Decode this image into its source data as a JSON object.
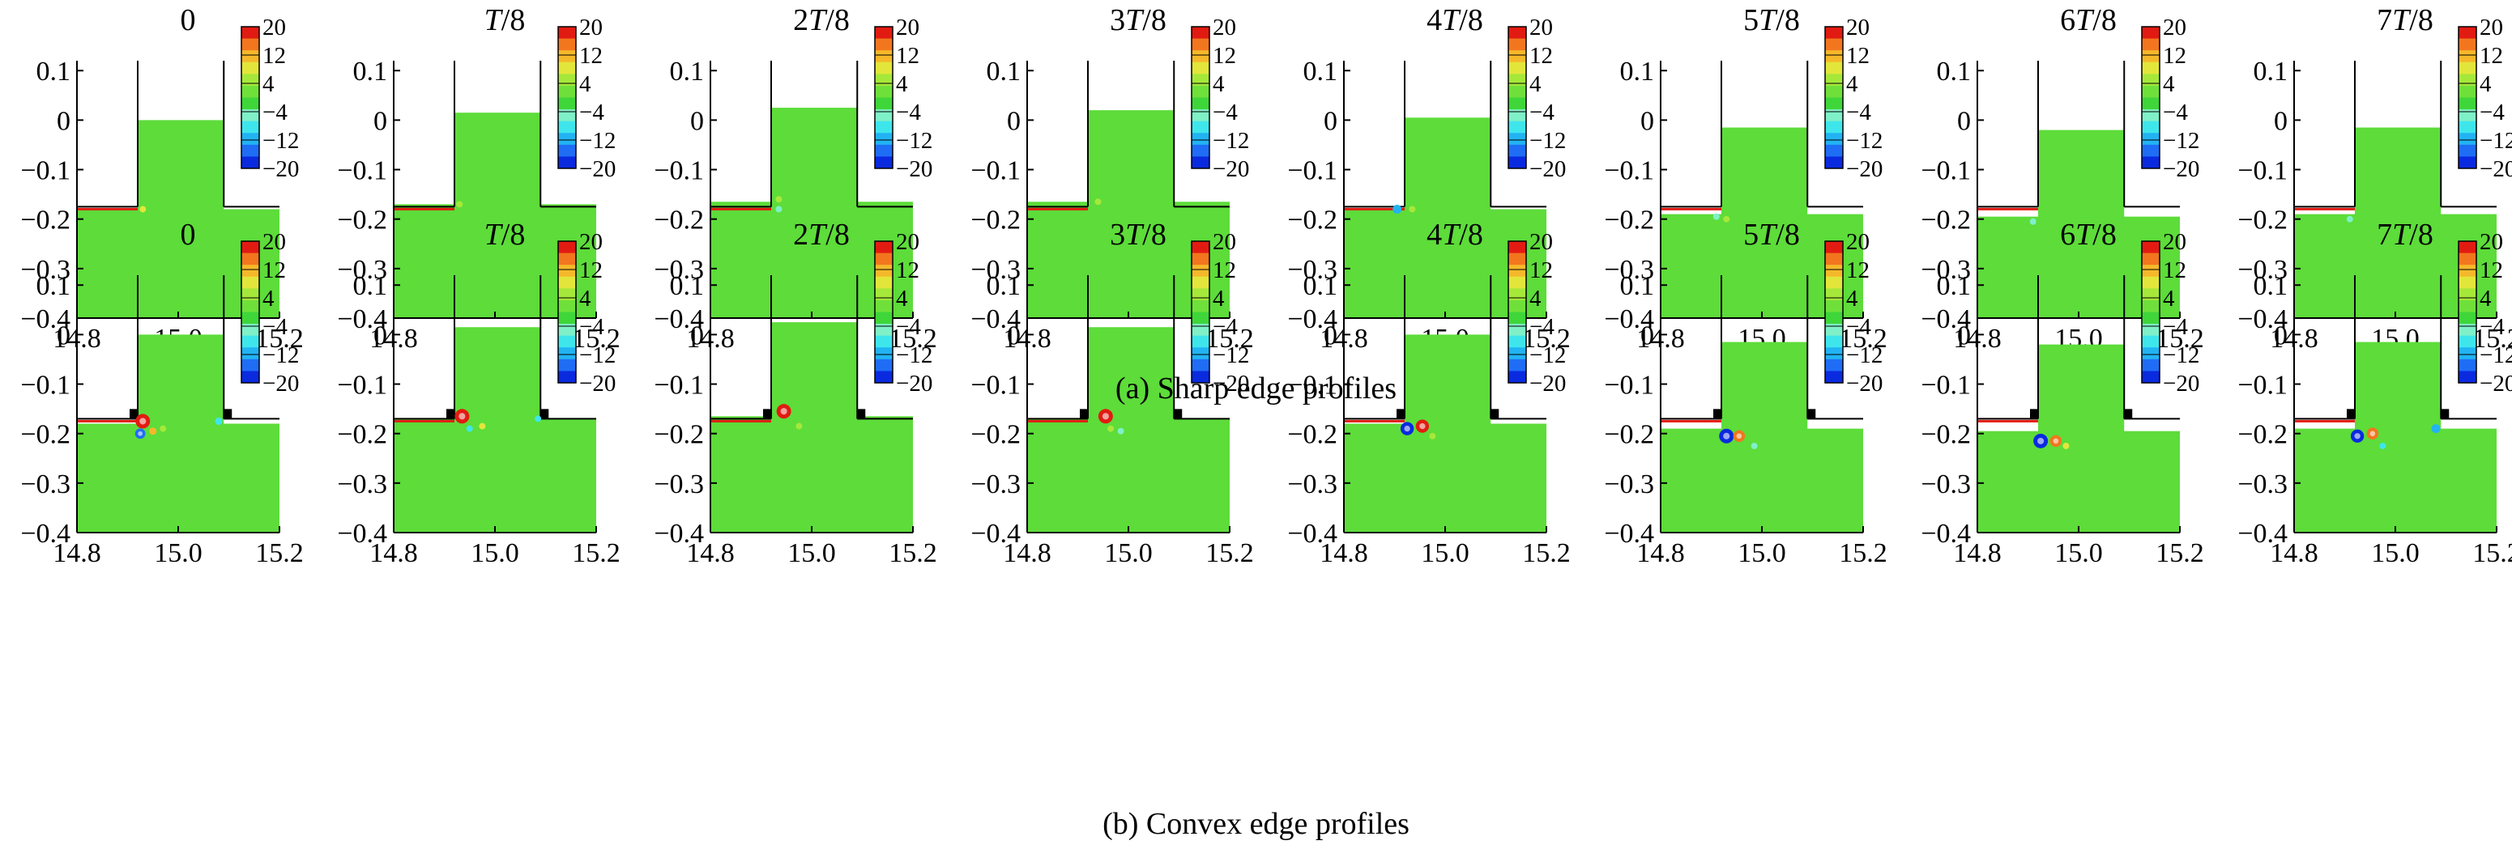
{
  "figure": {
    "captions": {
      "a": "(a) Sharp edge profiles",
      "b": "(b) Convex edge profiles"
    }
  },
  "chart_data": [
    {
      "type": "heatmap",
      "row": "a",
      "caption": "(a) Sharp edge profiles",
      "edge_profile": "sharp",
      "panel_titles": [
        "0",
        "T/8",
        "2T/8",
        "3T/8",
        "4T/8",
        "5T/8",
        "6T/8",
        "7T/8"
      ],
      "xlim": [
        14.8,
        15.2
      ],
      "ylim": [
        -0.4,
        0.12
      ],
      "xticks": [
        "14.8",
        "15.0",
        "15.2"
      ],
      "yticks": [
        "0.1",
        "0",
        "-0.1",
        "-0.2",
        "-0.3",
        "-0.4"
      ],
      "colorbar": {
        "ticks": [
          "20",
          "12",
          "4",
          "-4",
          "-12",
          "-20"
        ],
        "range": [
          -20,
          20
        ],
        "colors": [
          "#0a2adf",
          "#1f6df5",
          "#22b3f3",
          "#3ee6ec",
          "#7ff0c8",
          "#3fd63a",
          "#6fe03a",
          "#a6e83a",
          "#e2e63a",
          "#f5b82a",
          "#f2761e",
          "#e21b12"
        ]
      },
      "free_surface_inside": [
        0.0,
        0.015,
        0.025,
        0.02,
        0.005,
        -0.015,
        -0.02,
        -0.015
      ],
      "free_surface_outside": [
        -0.18,
        -0.17,
        -0.165,
        -0.165,
        -0.18,
        -0.19,
        -0.195,
        -0.19
      ],
      "vortices": [
        [
          {
            "x": 14.93,
            "y": -0.18,
            "v": 8
          }
        ],
        [
          {
            "x": 14.93,
            "y": -0.17,
            "v": 6
          }
        ],
        [
          {
            "x": 14.935,
            "y": -0.16,
            "v": 5
          },
          {
            "x": 14.935,
            "y": -0.18,
            "v": -6
          }
        ],
        [
          {
            "x": 14.94,
            "y": -0.165,
            "v": 5
          }
        ],
        [
          {
            "x": 14.905,
            "y": -0.18,
            "v": -12
          },
          {
            "x": 14.935,
            "y": -0.18,
            "v": 6
          }
        ],
        [
          {
            "x": 14.91,
            "y": -0.195,
            "v": -6
          },
          {
            "x": 14.93,
            "y": -0.2,
            "v": 4
          }
        ],
        [
          {
            "x": 14.91,
            "y": -0.205,
            "v": -5
          }
        ],
        [
          {
            "x": 14.91,
            "y": -0.2,
            "v": -4
          }
        ]
      ]
    },
    {
      "type": "heatmap",
      "row": "b",
      "caption": "(b) Convex edge profiles",
      "edge_profile": "convex",
      "panel_titles": [
        "0",
        "T/8",
        "2T/8",
        "3T/8",
        "4T/8",
        "5T/8",
        "6T/8",
        "7T/8"
      ],
      "xlim": [
        14.8,
        15.2
      ],
      "ylim": [
        -0.4,
        0.12
      ],
      "xticks": [
        "14.8",
        "15.0",
        "15.2"
      ],
      "yticks": [
        "0.1",
        "0",
        "-0.1",
        "-0.2",
        "-0.3",
        "-0.4"
      ],
      "colorbar": {
        "ticks": [
          "20",
          "12",
          "4",
          "-4",
          "-12",
          "-20"
        ],
        "range": [
          -20,
          20
        ],
        "colors": [
          "#0a2adf",
          "#1f6df5",
          "#22b3f3",
          "#3ee6ec",
          "#7ff0c8",
          "#3fd63a",
          "#6fe03a",
          "#a6e83a",
          "#e2e63a",
          "#f5b82a",
          "#f2761e",
          "#e21b12"
        ]
      },
      "free_surface_inside": [
        0.0,
        0.015,
        0.025,
        0.015,
        0.0,
        -0.015,
        -0.02,
        -0.015
      ],
      "free_surface_outside": [
        -0.18,
        -0.17,
        -0.165,
        -0.17,
        -0.18,
        -0.19,
        -0.195,
        -0.19
      ],
      "vortices": [
        [
          {
            "x": 14.93,
            "y": -0.175,
            "v": 20
          },
          {
            "x": 14.925,
            "y": -0.2,
            "v": -14
          },
          {
            "x": 14.95,
            "y": -0.195,
            "v": 10
          },
          {
            "x": 14.97,
            "y": -0.19,
            "v": 6
          },
          {
            "x": 15.08,
            "y": -0.175,
            "v": -10
          }
        ],
        [
          {
            "x": 14.935,
            "y": -0.165,
            "v": 20
          },
          {
            "x": 14.95,
            "y": -0.19,
            "v": -8
          },
          {
            "x": 14.975,
            "y": -0.185,
            "v": 8
          },
          {
            "x": 15.085,
            "y": -0.17,
            "v": -8
          }
        ],
        [
          {
            "x": 14.945,
            "y": -0.155,
            "v": 20
          },
          {
            "x": 14.975,
            "y": -0.185,
            "v": 6
          }
        ],
        [
          {
            "x": 14.955,
            "y": -0.165,
            "v": 20
          },
          {
            "x": 14.965,
            "y": -0.19,
            "v": 6
          },
          {
            "x": 14.985,
            "y": -0.195,
            "v": -6
          }
        ],
        [
          {
            "x": 14.925,
            "y": -0.19,
            "v": -18
          },
          {
            "x": 14.955,
            "y": -0.185,
            "v": 18
          },
          {
            "x": 14.975,
            "y": -0.205,
            "v": 6
          }
        ],
        [
          {
            "x": 14.93,
            "y": -0.205,
            "v": -20
          },
          {
            "x": 14.955,
            "y": -0.205,
            "v": 16
          },
          {
            "x": 14.985,
            "y": -0.225,
            "v": -6
          }
        ],
        [
          {
            "x": 14.925,
            "y": -0.215,
            "v": -20
          },
          {
            "x": 14.955,
            "y": -0.215,
            "v": 16
          },
          {
            "x": 14.975,
            "y": -0.225,
            "v": 8
          }
        ],
        [
          {
            "x": 14.925,
            "y": -0.205,
            "v": -18
          },
          {
            "x": 14.955,
            "y": -0.2,
            "v": 16
          },
          {
            "x": 14.975,
            "y": -0.225,
            "v": -8
          },
          {
            "x": 15.08,
            "y": -0.19,
            "v": -12
          }
        ]
      ]
    }
  ]
}
